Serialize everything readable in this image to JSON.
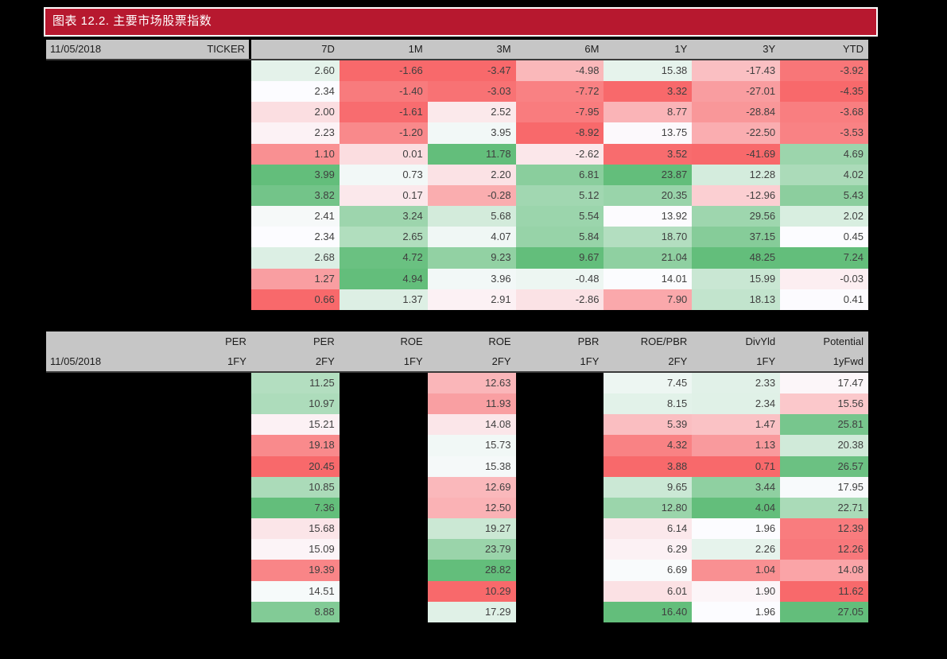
{
  "title_bar": {
    "text": "图表 12.2. 主要市场股票指数",
    "background": "#B7182F",
    "border_color": "#FFFFFF",
    "text_color": "#FFFFFF"
  },
  "page": {
    "background": "#000000",
    "header_gray": "#C6C6C6",
    "header_border": "#3A3A3A",
    "value_text": "#3F3F3F"
  },
  "chart_data": [
    {
      "type": "heatmap",
      "title": "图表 12.2. 主要市场股票指数",
      "as_of_date": "11/05/2018",
      "row_label_header": "TICKER",
      "columns": [
        "7D",
        "1M",
        "3M",
        "6M",
        "1Y",
        "3Y",
        "YTD"
      ],
      "rows": [
        [
          2.6,
          -1.66,
          -3.47,
          -4.98,
          15.38,
          -17.43,
          -3.92
        ],
        [
          2.34,
          -1.4,
          -3.03,
          -7.72,
          3.32,
          -27.01,
          -4.35
        ],
        [
          2.0,
          -1.61,
          2.52,
          -7.95,
          8.77,
          -28.84,
          -3.68
        ],
        [
          2.23,
          -1.2,
          3.95,
          -8.92,
          13.75,
          -22.5,
          -3.53
        ],
        [
          1.1,
          0.01,
          11.78,
          -2.62,
          3.52,
          -41.69,
          4.69
        ],
        [
          3.99,
          0.73,
          2.2,
          6.81,
          23.87,
          12.28,
          4.02
        ],
        [
          3.82,
          0.17,
          -0.28,
          5.12,
          20.35,
          -12.96,
          5.43
        ],
        [
          2.41,
          3.24,
          5.68,
          5.54,
          13.92,
          29.56,
          2.02
        ],
        [
          2.34,
          2.65,
          4.07,
          5.84,
          18.7,
          37.15,
          0.45
        ],
        [
          2.68,
          4.72,
          9.23,
          9.67,
          21.04,
          48.25,
          7.24
        ],
        [
          1.27,
          4.94,
          3.96,
          -0.48,
          14.01,
          15.99,
          -0.03
        ],
        [
          0.66,
          1.37,
          2.91,
          -2.86,
          7.9,
          18.13,
          0.41
        ]
      ],
      "color_scale": {
        "min_color": "#F8696B",
        "mid_color": "#FCFCFF",
        "max_color": "#63BE7B",
        "midpoint": "per-column median",
        "note": "per-column 3-color scale, green = high"
      },
      "legend": "off",
      "grid": "off"
    },
    {
      "type": "heatmap",
      "as_of_date": "11/05/2018",
      "columns": [
        {
          "metric": "PER",
          "period": "1FY",
          "has_data": false,
          "reversed": false
        },
        {
          "metric": "PER",
          "period": "2FY",
          "has_data": true,
          "reversed": true
        },
        {
          "metric": "ROE",
          "period": "1FY",
          "has_data": false,
          "reversed": false
        },
        {
          "metric": "ROE",
          "period": "2FY",
          "has_data": true,
          "reversed": false
        },
        {
          "metric": "PBR",
          "period": "1FY",
          "has_data": false,
          "reversed": false
        },
        {
          "metric": "ROE/PBR",
          "period": "2FY",
          "has_data": true,
          "reversed": false
        },
        {
          "metric": "DivYld",
          "period": "1FY",
          "has_data": true,
          "reversed": false
        },
        {
          "metric": "Potential",
          "period": "1yFwd",
          "has_data": true,
          "reversed": false
        }
      ],
      "rows": [
        [
          null,
          11.25,
          null,
          12.63,
          null,
          7.45,
          2.33,
          17.47
        ],
        [
          null,
          10.97,
          null,
          11.93,
          null,
          8.15,
          2.34,
          15.56
        ],
        [
          null,
          15.21,
          null,
          14.08,
          null,
          5.39,
          1.47,
          25.81
        ],
        [
          null,
          19.18,
          null,
          15.73,
          null,
          4.32,
          1.13,
          20.38
        ],
        [
          null,
          20.45,
          null,
          15.38,
          null,
          3.88,
          0.71,
          26.57
        ],
        [
          null,
          10.85,
          null,
          12.69,
          null,
          9.65,
          3.44,
          17.95
        ],
        [
          null,
          7.36,
          null,
          12.5,
          null,
          12.8,
          4.04,
          22.71
        ],
        [
          null,
          15.68,
          null,
          19.27,
          null,
          6.14,
          1.96,
          12.39
        ],
        [
          null,
          15.09,
          null,
          23.79,
          null,
          6.29,
          2.26,
          12.26
        ],
        [
          null,
          19.39,
          null,
          28.82,
          null,
          6.69,
          1.04,
          14.08
        ],
        [
          null,
          14.51,
          null,
          10.29,
          null,
          6.01,
          1.9,
          11.62
        ],
        [
          null,
          8.88,
          null,
          17.29,
          null,
          16.4,
          1.96,
          27.05
        ]
      ],
      "color_scale": {
        "min_color": "#F8696B",
        "mid_color": "#FCFCFF",
        "max_color": "#63BE7B",
        "midpoint": "per-column median",
        "note": "per-column 3-color scale; PER column reversed (low PER = green)"
      },
      "legend": "off",
      "grid": "off"
    }
  ]
}
